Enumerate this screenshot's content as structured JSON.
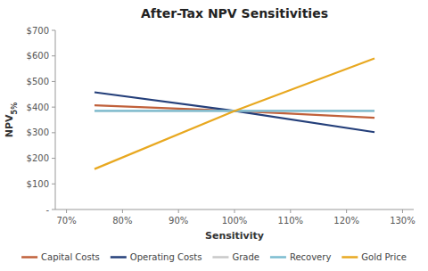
{
  "chart_data": {
    "type": "line",
    "title": "After-Tax NPV Sensitivities",
    "x_label": "Sensitivity",
    "y_label": "NPV5%",
    "x": [
      0.75,
      1.0,
      1.25
    ],
    "series": [
      {
        "name": "Capital Costs",
        "color": "#C0603A",
        "values": [
          407,
          385,
          358
        ]
      },
      {
        "name": "Operating Costs",
        "color": "#243F7A",
        "values": [
          458,
          385,
          302
        ]
      },
      {
        "name": "Grade",
        "color": "#C8C8C8",
        "values": [
          385,
          385,
          385
        ]
      },
      {
        "name": "Recovery",
        "color": "#7BBCD0",
        "values": [
          385,
          385,
          385
        ]
      },
      {
        "name": "Gold Price",
        "color": "#E8A820",
        "values": [
          158,
          385,
          590
        ]
      }
    ],
    "xlim": [
      0.68,
      1.32
    ],
    "xticks": [
      {
        "value": 0.7,
        "label": "70%"
      },
      {
        "value": 0.8,
        "label": "80%"
      },
      {
        "value": 0.9,
        "label": "90%"
      },
      {
        "value": 1.0,
        "label": "100%"
      },
      {
        "value": 1.1,
        "label": "110%"
      },
      {
        "value": 1.2,
        "label": "120%"
      },
      {
        "value": 1.3,
        "label": "130%"
      }
    ],
    "ylim": [
      0,
      700
    ],
    "yticks": [
      {
        "value": 0,
        "label": "-"
      },
      {
        "value": 100,
        "label": "$100"
      },
      {
        "value": 200,
        "label": "$200"
      },
      {
        "value": 300,
        "label": "$300"
      },
      {
        "value": 400,
        "label": "$400"
      },
      {
        "value": 500,
        "label": "$500"
      },
      {
        "value": 600,
        "label": "$600"
      },
      {
        "value": 700,
        "label": "$700"
      }
    ],
    "grid": false,
    "legend": "bottom"
  }
}
